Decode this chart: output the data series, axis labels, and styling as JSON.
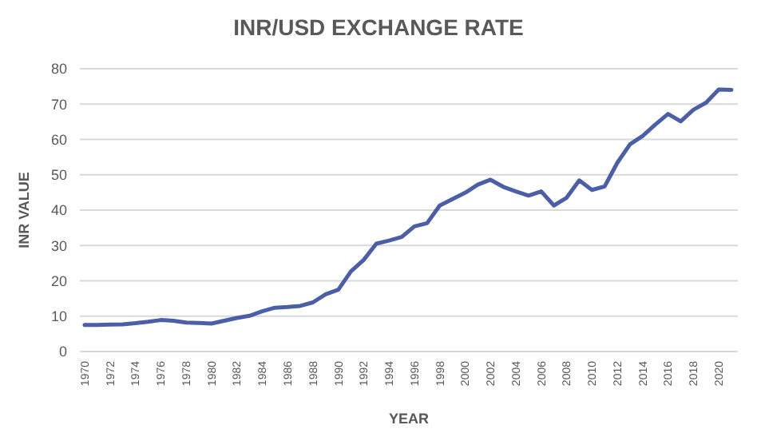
{
  "chart_data": {
    "type": "line",
    "title": "INR/USD EXCHANGE RATE",
    "xlabel": "YEAR",
    "ylabel": "INR VALUE",
    "categories": [
      "1970",
      null,
      "1972",
      null,
      "1974",
      null,
      "1976",
      null,
      "1978",
      null,
      "1980",
      null,
      "1982",
      null,
      "1984",
      null,
      "1986",
      null,
      "1988",
      null,
      "1990",
      null,
      "1992",
      null,
      "1994",
      null,
      "1996",
      null,
      "1998",
      null,
      "2000",
      null,
      "2002",
      null,
      "2004",
      null,
      "2006",
      null,
      "2008",
      null,
      "2010",
      null,
      "2012",
      null,
      "2014",
      null,
      "2016",
      null,
      "2018",
      null,
      "2020",
      null
    ],
    "series": [
      {
        "color": "#4a5fa8",
        "values": [
          7.5,
          7.5,
          7.6,
          7.7,
          8.0,
          8.4,
          8.9,
          8.7,
          8.2,
          8.1,
          7.9,
          8.7,
          9.5,
          10.1,
          11.4,
          12.4,
          12.6,
          12.9,
          13.9,
          16.2,
          17.5,
          22.7,
          25.9,
          30.5,
          31.4,
          32.4,
          35.4,
          36.3,
          41.3,
          43.1,
          44.9,
          47.2,
          48.6,
          46.6,
          45.3,
          44.1,
          45.3,
          41.3,
          43.5,
          48.4,
          45.7,
          46.7,
          53.4,
          58.6,
          61.0,
          64.2,
          67.2,
          65.1,
          68.4,
          70.4,
          74.1,
          74.0
        ]
      }
    ],
    "ylim": [
      0,
      80
    ],
    "yticks": [
      0,
      10,
      20,
      30,
      40,
      50,
      60,
      70,
      80
    ],
    "grid": "y",
    "marker": "none",
    "line_style": "solid"
  }
}
